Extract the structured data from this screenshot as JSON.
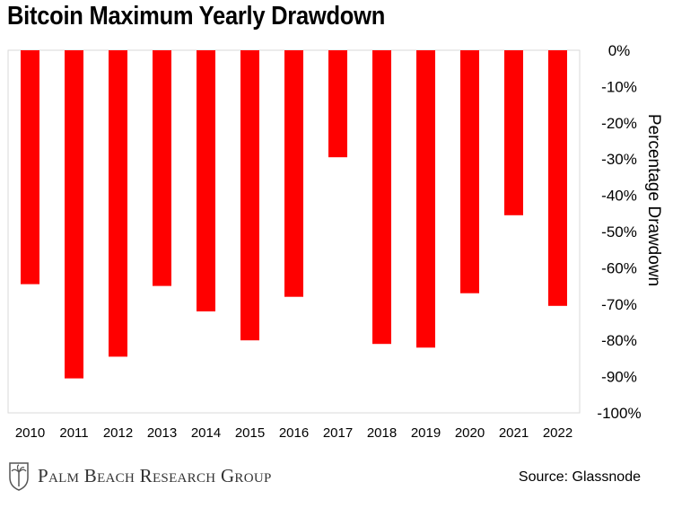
{
  "brand": {
    "name": "Palm Beach Research Group"
  },
  "source": "Source: Glassnode",
  "chart_data": {
    "type": "bar",
    "title": "Bitcoin Maximum Yearly Drawdown",
    "ylabel": "Percentage Drawdown",
    "xlabel": "",
    "categories": [
      "2010",
      "2011",
      "2012",
      "2013",
      "2014",
      "2015",
      "2016",
      "2017",
      "2018",
      "2019",
      "2020",
      "2021",
      "2022"
    ],
    "values": [
      -64.5,
      -90.5,
      -84.5,
      -65,
      -72,
      -80,
      -68,
      -29.5,
      -81,
      -82,
      -67,
      -45.5,
      -70.5
    ],
    "ylim": [
      -100,
      0
    ],
    "yticks": [
      "0%",
      "-10%",
      "-20%",
      "-30%",
      "-40%",
      "-50%",
      "-60%",
      "-70%",
      "-80%",
      "-90%",
      "-100%"
    ],
    "y_axis_position": "right",
    "grid": false,
    "bar_color": "#ff0000"
  }
}
